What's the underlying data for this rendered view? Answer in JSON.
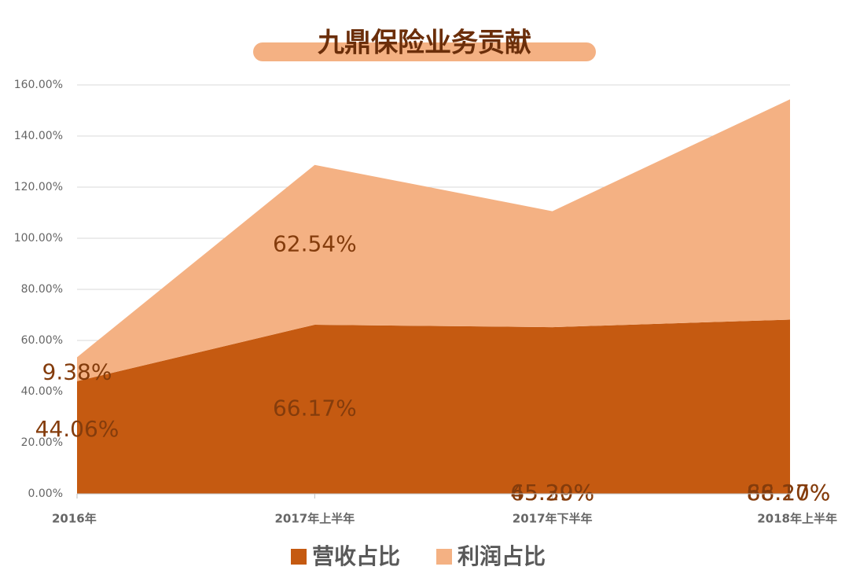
{
  "chart_data": {
    "type": "stacked_area",
    "title": "九鼎保险业务贡献",
    "categories": [
      "2016年",
      "2017年上半年",
      "2017年下半年",
      "2018年上半年"
    ],
    "series": [
      {
        "name": "营收占比",
        "color": "#c55a11",
        "values": [
          44.06,
          66.17,
          65.2,
          68.17
        ],
        "value_labels": [
          "44.06%",
          "66.17%",
          "65.20%",
          "68.17%"
        ]
      },
      {
        "name": "利润占比",
        "color": "#f4b183",
        "values": [
          9.38,
          62.54,
          45.39,
          86.2
        ],
        "value_labels": [
          "9.38%",
          "62.54%",
          "45.39%",
          "86.20%"
        ]
      }
    ],
    "ylim": [
      0,
      160
    ],
    "yticks": [
      {
        "value": 0,
        "label": "0.00%"
      },
      {
        "value": 20,
        "label": "20.00%"
      },
      {
        "value": 40,
        "label": "40.00%"
      },
      {
        "value": 60,
        "label": "60.00%"
      },
      {
        "value": 80,
        "label": "80.00%"
      },
      {
        "value": 100,
        "label": "100.00%"
      },
      {
        "value": 120,
        "label": "120.00%"
      },
      {
        "value": 140,
        "label": "140.00%"
      },
      {
        "value": 160,
        "label": "160.00%"
      }
    ],
    "grid": true
  }
}
